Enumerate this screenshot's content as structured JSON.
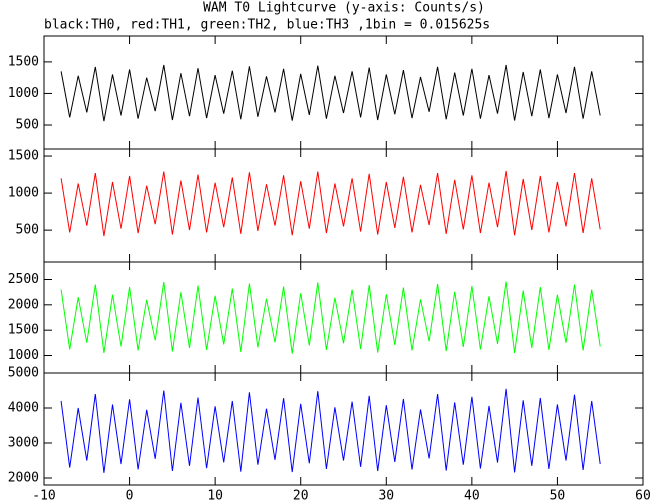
{
  "chart_data": [
    {
      "type": "line",
      "title": "WAM T0 Lightcurve (y-axis: Counts/s)",
      "subtitle": "black:TH0, red:TH1, green:TH2, blue:TH3 ,1bin = 0.015625s",
      "x": [
        -8,
        -7,
        -6,
        -5,
        -4,
        -3,
        -2,
        -1,
        0,
        1,
        2,
        3,
        4,
        5,
        6,
        7,
        8,
        9,
        10,
        11,
        12,
        13,
        14,
        15,
        16,
        17,
        18,
        19,
        20,
        21,
        22,
        23,
        24,
        25,
        26,
        27,
        28,
        29,
        30,
        31,
        32,
        33,
        34,
        35,
        36,
        37,
        38,
        39,
        40,
        41,
        42,
        43,
        44,
        45,
        46,
        47,
        48,
        49,
        50,
        51,
        52,
        53,
        54,
        55
      ],
      "values": [
        1350,
        620,
        1280,
        700,
        1420,
        560,
        1300,
        650,
        1380,
        600,
        1250,
        720,
        1450,
        580,
        1320,
        640,
        1400,
        610,
        1290,
        680,
        1360,
        590,
        1430,
        630,
        1270,
        700,
        1390,
        570,
        1310,
        660,
        1440,
        600,
        1280,
        690,
        1350,
        620,
        1410,
        580,
        1300,
        670,
        1370,
        610,
        1260,
        710,
        1420,
        590,
        1330,
        650,
        1390,
        600,
        1290,
        680,
        1450,
        570,
        1340,
        640,
        1380,
        610,
        1300,
        690,
        1420,
        600,
        1350,
        650
      ],
      "color": "#000000",
      "xlim": [
        -10,
        60
      ],
      "xticks": [
        -10,
        0,
        10,
        20,
        30,
        40,
        50,
        60
      ],
      "ylim": [
        120,
        1910
      ],
      "yticks": [
        500,
        1000,
        1500
      ]
    },
    {
      "type": "line",
      "x": [
        -8,
        -7,
        -6,
        -5,
        -4,
        -3,
        -2,
        -1,
        0,
        1,
        2,
        3,
        4,
        5,
        6,
        7,
        8,
        9,
        10,
        11,
        12,
        13,
        14,
        15,
        16,
        17,
        18,
        19,
        20,
        21,
        22,
        23,
        24,
        25,
        26,
        27,
        28,
        29,
        30,
        31,
        32,
        33,
        34,
        35,
        36,
        37,
        38,
        39,
        40,
        41,
        42,
        43,
        44,
        45,
        46,
        47,
        48,
        49,
        50,
        51,
        52,
        53,
        54,
        55
      ],
      "values": [
        1200,
        470,
        1130,
        560,
        1270,
        420,
        1150,
        520,
        1230,
        460,
        1100,
        580,
        1290,
        440,
        1170,
        500,
        1250,
        470,
        1140,
        540,
        1210,
        450,
        1280,
        490,
        1120,
        560,
        1240,
        430,
        1160,
        520,
        1290,
        460,
        1130,
        550,
        1200,
        480,
        1260,
        440,
        1150,
        530,
        1220,
        470,
        1110,
        570,
        1270,
        450,
        1180,
        510,
        1240,
        460,
        1140,
        540,
        1300,
        430,
        1190,
        500,
        1230,
        470,
        1150,
        550,
        1270,
        460,
        1200,
        510
      ],
      "color": "#ff0000",
      "xlim": [
        -10,
        60
      ],
      "xticks": [
        -10,
        0,
        10,
        20,
        30,
        40,
        50,
        60
      ],
      "ylim": [
        70,
        1595
      ],
      "yticks": [
        500,
        1000,
        1500
      ]
    },
    {
      "type": "line",
      "x": [
        -8,
        -7,
        -6,
        -5,
        -4,
        -3,
        -2,
        -1,
        0,
        1,
        2,
        3,
        4,
        5,
        6,
        7,
        8,
        9,
        10,
        11,
        12,
        13,
        14,
        15,
        16,
        17,
        18,
        19,
        20,
        21,
        22,
        23,
        24,
        25,
        26,
        27,
        28,
        29,
        30,
        31,
        32,
        33,
        34,
        35,
        36,
        37,
        38,
        39,
        40,
        41,
        42,
        43,
        44,
        45,
        46,
        47,
        48,
        49,
        50,
        51,
        52,
        53,
        54,
        55
      ],
      "values": [
        2300,
        1120,
        2150,
        1250,
        2400,
        1050,
        2200,
        1180,
        2350,
        1100,
        2100,
        1300,
        2450,
        1080,
        2250,
        1150,
        2380,
        1110,
        2180,
        1220,
        2320,
        1070,
        2420,
        1160,
        2120,
        1260,
        2360,
        1040,
        2230,
        1200,
        2440,
        1110,
        2140,
        1240,
        2300,
        1130,
        2390,
        1060,
        2210,
        1210,
        2340,
        1100,
        2110,
        1280,
        2410,
        1090,
        2260,
        1170,
        2370,
        1120,
        2170,
        1230,
        2460,
        1050,
        2280,
        1150,
        2350,
        1110,
        2200,
        1250,
        2400,
        1100,
        2300,
        1180
      ],
      "color": "#00ff00",
      "xlim": [
        -10,
        60
      ],
      "xticks": [
        -10,
        0,
        10,
        20,
        30,
        40,
        50,
        60
      ],
      "ylim": [
        655,
        2845
      ],
      "yticks": [
        1000,
        1500,
        2000,
        2500
      ]
    },
    {
      "type": "line",
      "x": [
        -8,
        -7,
        -6,
        -5,
        -4,
        -3,
        -2,
        -1,
        0,
        1,
        2,
        3,
        4,
        5,
        6,
        7,
        8,
        9,
        10,
        11,
        12,
        13,
        14,
        15,
        16,
        17,
        18,
        19,
        20,
        21,
        22,
        23,
        24,
        25,
        26,
        27,
        28,
        29,
        30,
        31,
        32,
        33,
        34,
        35,
        36,
        37,
        38,
        39,
        40,
        41,
        42,
        43,
        44,
        45,
        46,
        47,
        48,
        49,
        50,
        51,
        52,
        53,
        54,
        55
      ],
      "values": [
        4200,
        2300,
        4000,
        2500,
        4400,
        2150,
        4100,
        2400,
        4250,
        2250,
        3950,
        2550,
        4500,
        2200,
        4150,
        2350,
        4300,
        2280,
        4050,
        2450,
        4200,
        2180,
        4450,
        2380,
        3980,
        2520,
        4280,
        2170,
        4120,
        2420,
        4480,
        2260,
        4020,
        2500,
        4180,
        2320,
        4350,
        2200,
        4080,
        2460,
        4260,
        2240,
        3960,
        2560,
        4400,
        2210,
        4160,
        2380,
        4320,
        2270,
        4060,
        2440,
        4550,
        2160,
        4220,
        2350,
        4290,
        2260,
        4100,
        2500,
        4380,
        2230,
        4200,
        2400
      ],
      "color": "#0000ff",
      "xlim": [
        -10,
        60
      ],
      "xticks": [
        -10,
        0,
        10,
        20,
        30,
        40,
        50,
        60
      ],
      "ylim": [
        1800,
        5000
      ],
      "yticks": [
        2000,
        3000,
        4000,
        5000
      ]
    }
  ]
}
